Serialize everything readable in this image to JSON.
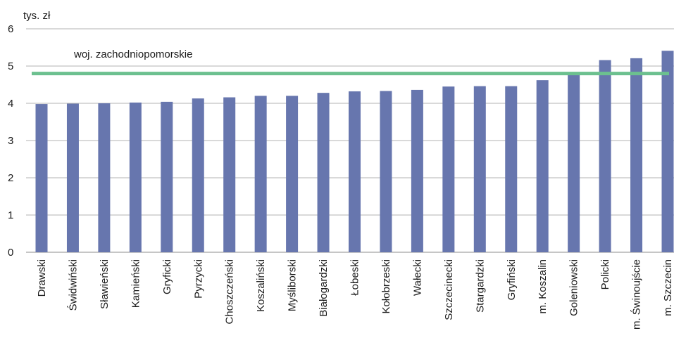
{
  "chart_data": {
    "type": "bar",
    "ylabel": "tys. zł",
    "ylim": [
      0,
      6
    ],
    "yticks": [
      0,
      1,
      2,
      3,
      4,
      5,
      6
    ],
    "grid": true,
    "categories": [
      "Drawski",
      "Świdwiński",
      "Sławieński",
      "Kamieński",
      "Gryficki",
      "Pyrzycki",
      "Choszczeński",
      "Koszaliński",
      "Myśliborski",
      "Białogardzki",
      "Łobeski",
      "Kołobrzeski",
      "Wałecki",
      "Szczecinecki",
      "Stargardzki",
      "Gryfiński",
      "m. Koszalin",
      "Goleniowski",
      "Policki",
      "m. Świnoujście",
      "m. Szczecin"
    ],
    "values": [
      3.98,
      3.99,
      4.0,
      4.02,
      4.04,
      4.13,
      4.16,
      4.2,
      4.2,
      4.28,
      4.32,
      4.33,
      4.36,
      4.45,
      4.46,
      4.46,
      4.62,
      4.78,
      5.16,
      5.21,
      5.41
    ],
    "bar_color": "#6776ae",
    "reference_line": {
      "label": "woj. zachodniopomorskie",
      "value": 4.8,
      "color": "#6cc08f"
    }
  }
}
